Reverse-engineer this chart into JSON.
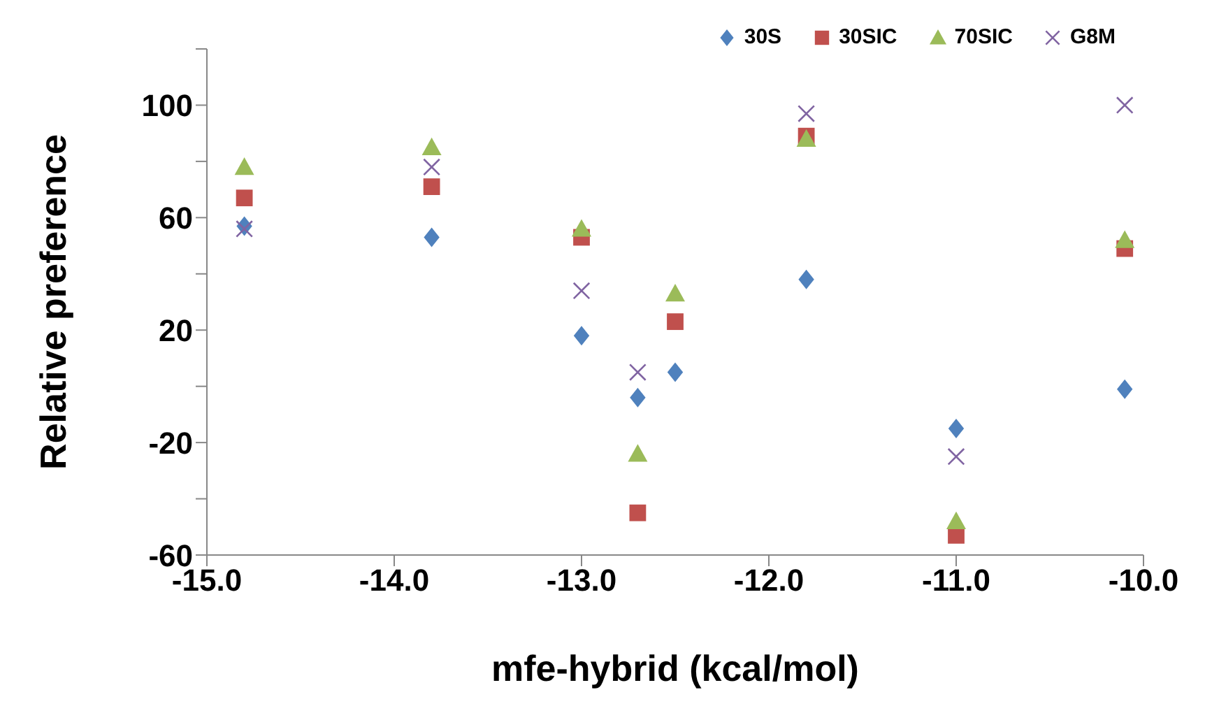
{
  "chart_data": {
    "type": "scatter",
    "xlabel": "mfe-hybrid (kcal/mol)",
    "ylabel": "Relative preference",
    "x": [
      -14.8,
      -13.8,
      -13.0,
      -12.7,
      -12.5,
      -11.8,
      -11.0,
      -10.1
    ],
    "series": [
      {
        "name": "30S",
        "color": "#4f81bd",
        "marker": "diamond",
        "values": [
          57,
          53,
          18,
          -4,
          5,
          38,
          -15,
          -1
        ]
      },
      {
        "name": "30SIC",
        "color": "#c0504d",
        "marker": "square",
        "values": [
          67,
          71,
          53,
          -45,
          23,
          89,
          -53,
          49
        ]
      },
      {
        "name": "70SIC",
        "color": "#9bbb59",
        "marker": "triangle",
        "values": [
          78,
          85,
          56,
          -24,
          33,
          88,
          -48,
          52
        ]
      },
      {
        "name": "G8M",
        "color": "#8064a2",
        "marker": "cross",
        "values": [
          56,
          78,
          34,
          5,
          null,
          97,
          -25,
          100
        ]
      }
    ],
    "xlim": [
      -15,
      -10
    ],
    "xticks": [
      {
        "value": -15,
        "label": "-15.0"
      },
      {
        "value": -14,
        "label": "-14.0"
      },
      {
        "value": -13,
        "label": "-13.0"
      },
      {
        "value": -12,
        "label": "-12.0"
      },
      {
        "value": -11,
        "label": "-11.0"
      },
      {
        "value": -10,
        "label": "-10.0"
      }
    ],
    "ylim": [
      -60,
      120
    ],
    "yticks": [
      -60,
      {
        "value": -40,
        "label": null
      },
      -20,
      {
        "value": 0,
        "label": null
      },
      20,
      {
        "value": 40,
        "label": null
      },
      60,
      {
        "value": 80,
        "label": null
      },
      100,
      {
        "value": 120,
        "label": null
      }
    ],
    "grid": false,
    "legend": "top right"
  }
}
